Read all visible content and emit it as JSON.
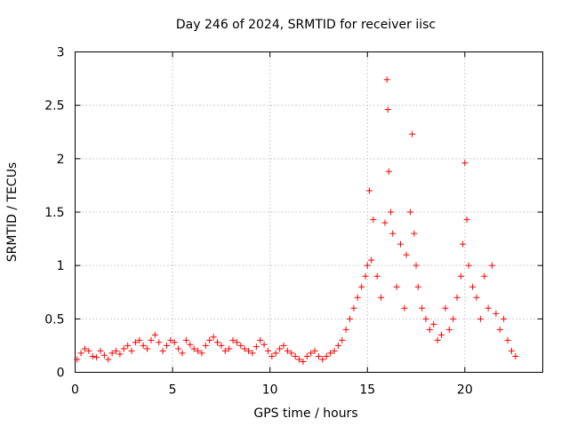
{
  "chart_data": {
    "type": "scatter",
    "title": "Day 246 of 2024, SRMTID for receiver iisc",
    "xlabel": "GPS time / hours",
    "ylabel": "SRMTID / TECUs",
    "xlim": [
      0,
      24
    ],
    "ylim": [
      0,
      3
    ],
    "xticks": [
      0,
      5,
      10,
      15,
      20
    ],
    "yticks": [
      0,
      0.5,
      1,
      1.5,
      2,
      2.5,
      3
    ],
    "xtick_labels": [
      "0",
      "5",
      "10",
      "15",
      "20"
    ],
    "ytick_labels": [
      "0",
      "0.5",
      "1",
      "1.5",
      "2",
      "2.5",
      "3"
    ],
    "grid": true,
    "marker": "+",
    "color": "#ff0000",
    "series": [
      {
        "name": "SRMTID",
        "x": [
          0.1,
          0.3,
          0.5,
          0.7,
          0.9,
          1.1,
          1.3,
          1.5,
          1.7,
          1.9,
          2.1,
          2.3,
          2.5,
          2.7,
          2.9,
          3.1,
          3.3,
          3.5,
          3.7,
          3.9,
          4.1,
          4.3,
          4.5,
          4.7,
          4.9,
          5.1,
          5.3,
          5.5,
          5.7,
          5.9,
          6.1,
          6.3,
          6.5,
          6.7,
          6.9,
          7.1,
          7.3,
          7.5,
          7.7,
          7.9,
          8.1,
          8.3,
          8.5,
          8.7,
          8.9,
          9.1,
          9.3,
          9.5,
          9.7,
          9.9,
          10.1,
          10.3,
          10.5,
          10.7,
          10.9,
          11.1,
          11.3,
          11.5,
          11.7,
          11.9,
          12.1,
          12.3,
          12.5,
          12.7,
          12.9,
          13.1,
          13.3,
          13.5,
          13.7,
          13.9,
          14.1,
          14.3,
          14.5,
          14.7,
          14.9,
          15.0,
          15.1,
          15.2,
          15.3,
          15.5,
          15.7,
          15.9,
          16.0,
          16.05,
          16.1,
          16.2,
          16.3,
          16.5,
          16.7,
          16.9,
          17.0,
          17.2,
          17.3,
          17.4,
          17.5,
          17.6,
          17.8,
          18.0,
          18.2,
          18.4,
          18.6,
          18.8,
          19.0,
          19.2,
          19.4,
          19.6,
          19.8,
          19.9,
          20.0,
          20.1,
          20.2,
          20.4,
          20.6,
          20.8,
          21.0,
          21.2,
          21.4,
          21.6,
          21.8,
          22.0,
          22.2,
          22.4,
          22.6
        ],
        "y": [
          0.12,
          0.18,
          0.22,
          0.2,
          0.15,
          0.14,
          0.2,
          0.16,
          0.12,
          0.18,
          0.2,
          0.17,
          0.22,
          0.25,
          0.2,
          0.28,
          0.3,
          0.25,
          0.22,
          0.3,
          0.35,
          0.28,
          0.2,
          0.25,
          0.3,
          0.28,
          0.22,
          0.18,
          0.3,
          0.26,
          0.22,
          0.2,
          0.18,
          0.25,
          0.3,
          0.33,
          0.28,
          0.25,
          0.2,
          0.22,
          0.3,
          0.28,
          0.25,
          0.22,
          0.2,
          0.18,
          0.24,
          0.3,
          0.26,
          0.2,
          0.15,
          0.18,
          0.22,
          0.25,
          0.2,
          0.18,
          0.15,
          0.12,
          0.1,
          0.15,
          0.18,
          0.2,
          0.15,
          0.12,
          0.15,
          0.18,
          0.2,
          0.25,
          0.3,
          0.4,
          0.5,
          0.6,
          0.7,
          0.8,
          0.9,
          1.0,
          1.7,
          1.05,
          1.43,
          0.9,
          0.7,
          1.4,
          2.74,
          2.46,
          1.88,
          1.5,
          1.3,
          0.8,
          1.2,
          0.6,
          1.1,
          1.5,
          2.23,
          1.3,
          1.0,
          0.8,
          0.6,
          0.5,
          0.4,
          0.45,
          0.3,
          0.35,
          0.6,
          0.4,
          0.5,
          0.7,
          0.9,
          1.2,
          1.96,
          1.43,
          1.0,
          0.8,
          0.7,
          0.5,
          0.9,
          0.6,
          1.0,
          0.55,
          0.4,
          0.5,
          0.3,
          0.2,
          0.15
        ]
      }
    ]
  }
}
